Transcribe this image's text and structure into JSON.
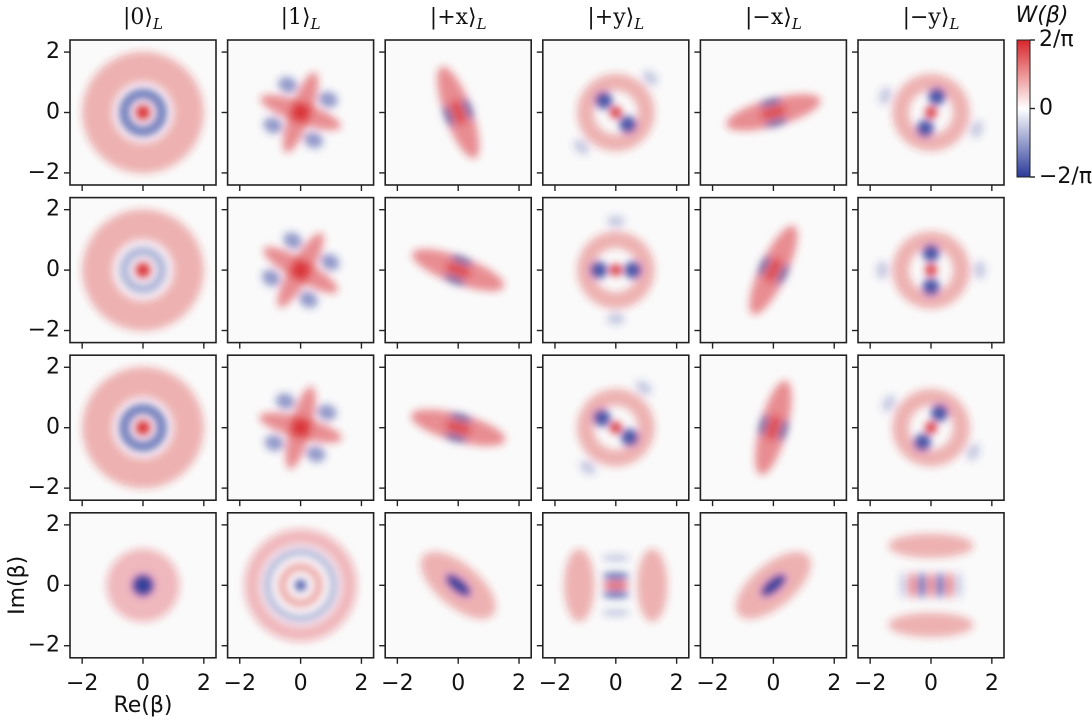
{
  "chart_data": {
    "type": "heatmap",
    "columns": [
      {
        "state": "|0⟩",
        "subscript": "L"
      },
      {
        "state": "|1⟩",
        "subscript": "L"
      },
      {
        "state": "|+x⟩",
        "subscript": "L"
      },
      {
        "state": "|+y⟩",
        "subscript": "L"
      },
      {
        "state": "|−x⟩",
        "subscript": "L"
      },
      {
        "state": "|−y⟩",
        "subscript": "L"
      }
    ],
    "xlabel": "Re(β)",
    "ylabel": "Im(β)",
    "xlim": [
      -2.4,
      2.4
    ],
    "ylim": [
      -2.4,
      2.4
    ],
    "xticks": [
      {
        "value": -2,
        "label": "−2"
      },
      0,
      2
    ],
    "yticks": [
      {
        "value": -2,
        "label": "−2"
      },
      0,
      2
    ],
    "colorbar": {
      "label": "W(β)",
      "clim": [
        -0.6366,
        0.6366
      ],
      "ticks": [
        {
          "value": 0.6366,
          "label": "2/π"
        },
        0,
        {
          "value": -0.6366,
          "label": "−2/π"
        }
      ],
      "colors": [
        "#2b3a9a",
        "#ffffff",
        "#d7262b"
      ]
    }
  }
}
